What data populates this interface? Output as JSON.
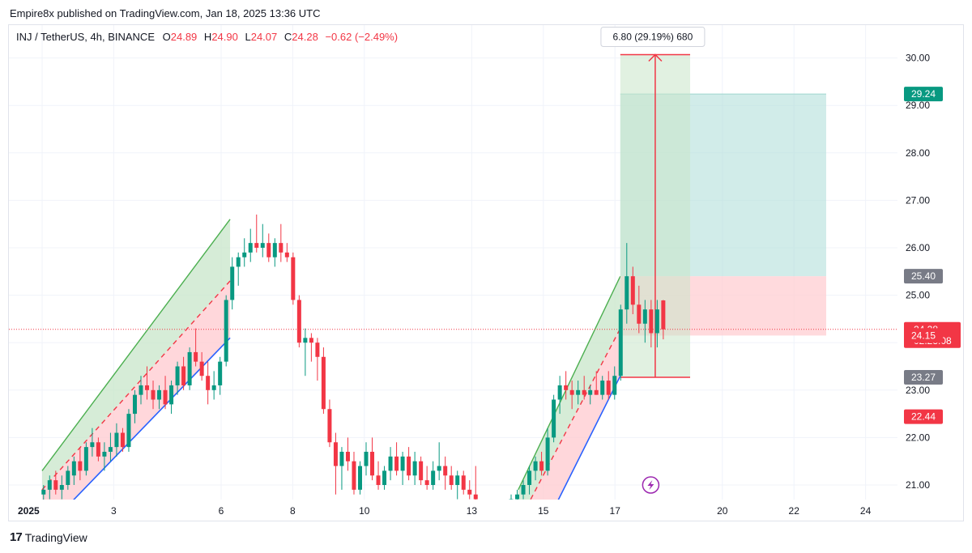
{
  "header": {
    "published": "Empire8x published on TradingView.com, Jan 18, 2025 13:36 UTC"
  },
  "legend": {
    "symbol": "INJ / TetherUS, 4h, BINANCE",
    "o_label": "O",
    "o_value": "24.89",
    "h_label": "H",
    "h_value": "24.90",
    "l_label": "L",
    "l_value": "24.07",
    "c_label": "C",
    "c_value": "24.28",
    "change": "−0.62 (−2.49%)"
  },
  "footer": {
    "logo_mark": "17",
    "logo_text": "TradingView"
  },
  "colors": {
    "up": "#089981",
    "down": "#f23645",
    "grid": "#f0f3fa",
    "axis_text": "#131722",
    "channel_upper": "#4caf50",
    "channel_lower": "#2962ff",
    "channel_mid": "#f23645",
    "channel_fill_green": "#c8e6c9",
    "channel_fill_red": "#ffcdd2",
    "target_fill": "#b2dfdb",
    "stop_fill": "#ffcdd2",
    "measure_fill": "#c8e6c9",
    "measure_line": "#f23645"
  },
  "chart_data": {
    "type": "candlestick",
    "symbol": "INJ / TetherUS",
    "interval": "4h",
    "exchange": "BINANCE",
    "ylim": [
      20.6,
      30.6
    ],
    "y_ticks": [
      21.0,
      22.0,
      23.0,
      24.0,
      25.0,
      26.0,
      27.0,
      28.0,
      29.0,
      30.0
    ],
    "y_tick_labels": [
      "21.00",
      "22.00",
      "23.00",
      "",
      "25.00",
      "26.00",
      "27.00",
      "28.00",
      "29.00",
      "30.00"
    ],
    "x_tick_labels": [
      {
        "label": "2025",
        "day": 1,
        "bold": true
      },
      {
        "label": "3",
        "day": 3
      },
      {
        "label": "6",
        "day": 6
      },
      {
        "label": "8",
        "day": 8
      },
      {
        "label": "10",
        "day": 10
      },
      {
        "label": "13",
        "day": 13
      },
      {
        "label": "15",
        "day": 15
      },
      {
        "label": "17",
        "day": 17
      },
      {
        "label": "20",
        "day": 20
      },
      {
        "label": "22",
        "day": 22
      },
      {
        "label": "24",
        "day": 24
      }
    ],
    "candles": [
      {
        "day": 1.04,
        "o": 20.8,
        "h": 21.0,
        "l": 20.6,
        "c": 20.9
      },
      {
        "day": 1.21,
        "o": 20.9,
        "h": 21.2,
        "l": 20.7,
        "c": 21.1
      },
      {
        "day": 1.38,
        "o": 21.1,
        "h": 21.3,
        "l": 20.8,
        "c": 20.9
      },
      {
        "day": 1.55,
        "o": 20.9,
        "h": 21.2,
        "l": 20.7,
        "c": 21.0
      },
      {
        "day": 1.72,
        "o": 21.0,
        "h": 21.4,
        "l": 20.9,
        "c": 21.3
      },
      {
        "day": 1.89,
        "o": 21.2,
        "h": 21.6,
        "l": 21.0,
        "c": 21.5
      },
      {
        "day": 2.06,
        "o": 21.5,
        "h": 21.8,
        "l": 21.1,
        "c": 21.3
      },
      {
        "day": 2.23,
        "o": 21.3,
        "h": 21.9,
        "l": 21.2,
        "c": 21.8
      },
      {
        "day": 2.4,
        "o": 21.8,
        "h": 22.2,
        "l": 21.6,
        "c": 21.9
      },
      {
        "day": 2.57,
        "o": 21.9,
        "h": 22.0,
        "l": 21.5,
        "c": 21.6
      },
      {
        "day": 2.74,
        "o": 21.6,
        "h": 21.9,
        "l": 21.3,
        "c": 21.7
      },
      {
        "day": 2.91,
        "o": 21.7,
        "h": 22.1,
        "l": 21.5,
        "c": 21.8
      },
      {
        "day": 3.08,
        "o": 21.8,
        "h": 22.3,
        "l": 21.6,
        "c": 22.1
      },
      {
        "day": 3.25,
        "o": 22.1,
        "h": 22.2,
        "l": 21.7,
        "c": 21.8
      },
      {
        "day": 3.42,
        "o": 21.8,
        "h": 22.6,
        "l": 21.7,
        "c": 22.5
      },
      {
        "day": 3.59,
        "o": 22.5,
        "h": 23.0,
        "l": 22.3,
        "c": 22.9
      },
      {
        "day": 3.76,
        "o": 22.9,
        "h": 23.3,
        "l": 22.7,
        "c": 23.1
      },
      {
        "day": 3.93,
        "o": 23.1,
        "h": 23.5,
        "l": 22.8,
        "c": 23.0
      },
      {
        "day": 4.1,
        "o": 23.0,
        "h": 23.2,
        "l": 22.6,
        "c": 22.8
      },
      {
        "day": 4.27,
        "o": 22.8,
        "h": 23.1,
        "l": 22.6,
        "c": 23.0
      },
      {
        "day": 4.44,
        "o": 23.0,
        "h": 23.3,
        "l": 22.6,
        "c": 22.7
      },
      {
        "day": 4.61,
        "o": 22.7,
        "h": 23.2,
        "l": 22.5,
        "c": 23.1
      },
      {
        "day": 4.78,
        "o": 23.1,
        "h": 23.6,
        "l": 22.9,
        "c": 23.5
      },
      {
        "day": 4.95,
        "o": 23.5,
        "h": 23.7,
        "l": 23.0,
        "c": 23.1
      },
      {
        "day": 5.12,
        "o": 23.1,
        "h": 23.9,
        "l": 23.0,
        "c": 23.8
      },
      {
        "day": 5.29,
        "o": 23.8,
        "h": 24.3,
        "l": 23.5,
        "c": 23.6
      },
      {
        "day": 5.46,
        "o": 23.6,
        "h": 23.8,
        "l": 23.2,
        "c": 23.3
      },
      {
        "day": 5.63,
        "o": 23.3,
        "h": 23.6,
        "l": 22.7,
        "c": 23.0
      },
      {
        "day": 5.8,
        "o": 23.0,
        "h": 23.4,
        "l": 22.8,
        "c": 23.1
      },
      {
        "day": 5.97,
        "o": 23.1,
        "h": 23.7,
        "l": 22.9,
        "c": 23.6
      },
      {
        "day": 6.14,
        "o": 23.6,
        "h": 25.0,
        "l": 23.5,
        "c": 24.9
      },
      {
        "day": 6.31,
        "o": 24.9,
        "h": 25.8,
        "l": 24.7,
        "c": 25.6
      },
      {
        "day": 6.48,
        "o": 25.6,
        "h": 25.9,
        "l": 25.2,
        "c": 25.8
      },
      {
        "day": 6.65,
        "o": 25.8,
        "h": 26.2,
        "l": 25.6,
        "c": 25.9
      },
      {
        "day": 6.82,
        "o": 25.9,
        "h": 26.4,
        "l": 25.7,
        "c": 26.1
      },
      {
        "day": 6.99,
        "o": 26.1,
        "h": 26.7,
        "l": 25.9,
        "c": 26.0
      },
      {
        "day": 7.16,
        "o": 26.0,
        "h": 26.5,
        "l": 25.8,
        "c": 26.1
      },
      {
        "day": 7.33,
        "o": 26.1,
        "h": 26.3,
        "l": 25.7,
        "c": 25.8
      },
      {
        "day": 7.5,
        "o": 25.8,
        "h": 26.2,
        "l": 25.6,
        "c": 26.1
      },
      {
        "day": 7.67,
        "o": 26.1,
        "h": 26.5,
        "l": 25.7,
        "c": 25.9
      },
      {
        "day": 7.84,
        "o": 25.9,
        "h": 26.1,
        "l": 25.7,
        "c": 25.8
      },
      {
        "day": 8.01,
        "o": 25.8,
        "h": 25.9,
        "l": 24.8,
        "c": 24.9
      },
      {
        "day": 8.18,
        "o": 24.9,
        "h": 25.0,
        "l": 23.9,
        "c": 24.0
      },
      {
        "day": 8.35,
        "o": 24.0,
        "h": 24.3,
        "l": 23.3,
        "c": 24.1
      },
      {
        "day": 8.52,
        "o": 24.1,
        "h": 24.2,
        "l": 23.6,
        "c": 24.0
      },
      {
        "day": 8.69,
        "o": 24.0,
        "h": 24.1,
        "l": 23.2,
        "c": 23.7
      },
      {
        "day": 8.86,
        "o": 23.7,
        "h": 23.9,
        "l": 22.5,
        "c": 22.6
      },
      {
        "day": 9.03,
        "o": 22.6,
        "h": 22.8,
        "l": 21.8,
        "c": 21.9
      },
      {
        "day": 9.2,
        "o": 21.9,
        "h": 22.1,
        "l": 20.8,
        "c": 21.4
      },
      {
        "day": 9.37,
        "o": 21.4,
        "h": 21.8,
        "l": 20.9,
        "c": 21.7
      },
      {
        "day": 9.54,
        "o": 21.7,
        "h": 22.0,
        "l": 21.3,
        "c": 21.5
      },
      {
        "day": 9.71,
        "o": 21.5,
        "h": 21.7,
        "l": 20.8,
        "c": 20.9
      },
      {
        "day": 9.88,
        "o": 20.9,
        "h": 21.5,
        "l": 20.8,
        "c": 21.4
      },
      {
        "day": 10.05,
        "o": 21.4,
        "h": 21.9,
        "l": 21.2,
        "c": 21.7
      },
      {
        "day": 10.22,
        "o": 21.7,
        "h": 22.0,
        "l": 21.1,
        "c": 21.2
      },
      {
        "day": 10.39,
        "o": 21.2,
        "h": 21.5,
        "l": 20.9,
        "c": 21.0
      },
      {
        "day": 10.56,
        "o": 21.0,
        "h": 21.4,
        "l": 20.9,
        "c": 21.3
      },
      {
        "day": 10.73,
        "o": 21.3,
        "h": 21.8,
        "l": 21.1,
        "c": 21.6
      },
      {
        "day": 10.9,
        "o": 21.6,
        "h": 21.9,
        "l": 21.2,
        "c": 21.3
      },
      {
        "day": 11.07,
        "o": 21.3,
        "h": 21.7,
        "l": 21.0,
        "c": 21.6
      },
      {
        "day": 11.24,
        "o": 21.6,
        "h": 21.8,
        "l": 21.1,
        "c": 21.2
      },
      {
        "day": 11.41,
        "o": 21.2,
        "h": 21.7,
        "l": 21.0,
        "c": 21.5
      },
      {
        "day": 11.58,
        "o": 21.5,
        "h": 21.6,
        "l": 21.0,
        "c": 21.1
      },
      {
        "day": 11.75,
        "o": 21.1,
        "h": 21.4,
        "l": 20.9,
        "c": 21.0
      },
      {
        "day": 11.92,
        "o": 21.0,
        "h": 21.5,
        "l": 20.9,
        "c": 21.3
      },
      {
        "day": 12.09,
        "o": 21.3,
        "h": 21.9,
        "l": 21.1,
        "c": 21.4
      },
      {
        "day": 12.26,
        "o": 21.4,
        "h": 21.6,
        "l": 20.9,
        "c": 21.2
      },
      {
        "day": 12.43,
        "o": 21.2,
        "h": 21.4,
        "l": 20.9,
        "c": 21.0
      },
      {
        "day": 12.6,
        "o": 21.0,
        "h": 21.3,
        "l": 20.7,
        "c": 21.2
      },
      {
        "day": 12.77,
        "o": 21.2,
        "h": 21.3,
        "l": 20.8,
        "c": 20.9
      },
      {
        "day": 12.94,
        "o": 20.9,
        "h": 21.1,
        "l": 20.7,
        "c": 20.8
      },
      {
        "day": 13.11,
        "o": 20.8,
        "h": 21.4,
        "l": 20.6,
        "c": 20.7
      },
      {
        "day": 14.1,
        "o": 20.6,
        "h": 20.8,
        "l": 20.6,
        "c": 20.7
      },
      {
        "day": 14.27,
        "o": 20.7,
        "h": 20.9,
        "l": 20.6,
        "c": 20.8
      },
      {
        "day": 14.44,
        "o": 20.8,
        "h": 21.1,
        "l": 20.7,
        "c": 21.0
      },
      {
        "day": 14.61,
        "o": 21.0,
        "h": 21.4,
        "l": 20.8,
        "c": 21.3
      },
      {
        "day": 14.78,
        "o": 21.3,
        "h": 21.6,
        "l": 21.1,
        "c": 21.5
      },
      {
        "day": 14.95,
        "o": 21.5,
        "h": 21.7,
        "l": 21.2,
        "c": 21.3
      },
      {
        "day": 15.12,
        "o": 21.3,
        "h": 22.2,
        "l": 21.2,
        "c": 22.0
      },
      {
        "day": 15.29,
        "o": 22.0,
        "h": 22.9,
        "l": 21.9,
        "c": 22.8
      },
      {
        "day": 15.46,
        "o": 22.8,
        "h": 23.3,
        "l": 22.5,
        "c": 23.1
      },
      {
        "day": 15.63,
        "o": 23.1,
        "h": 23.4,
        "l": 22.8,
        "c": 23.0
      },
      {
        "day": 15.8,
        "o": 23.0,
        "h": 23.2,
        "l": 22.6,
        "c": 22.9
      },
      {
        "day": 15.97,
        "o": 22.9,
        "h": 23.2,
        "l": 22.7,
        "c": 23.0
      },
      {
        "day": 16.14,
        "o": 23.0,
        "h": 23.3,
        "l": 22.8,
        "c": 22.9
      },
      {
        "day": 16.31,
        "o": 22.9,
        "h": 23.1,
        "l": 22.7,
        "c": 23.0
      },
      {
        "day": 16.48,
        "o": 23.0,
        "h": 23.4,
        "l": 22.9,
        "c": 22.9
      },
      {
        "day": 16.65,
        "o": 22.9,
        "h": 23.3,
        "l": 22.8,
        "c": 23.2
      },
      {
        "day": 16.82,
        "o": 23.2,
        "h": 23.4,
        "l": 22.8,
        "c": 22.9
      },
      {
        "day": 16.99,
        "o": 22.9,
        "h": 23.5,
        "l": 22.8,
        "c": 23.3
      },
      {
        "day": 17.16,
        "o": 23.3,
        "h": 24.8,
        "l": 23.2,
        "c": 24.7
      },
      {
        "day": 17.33,
        "o": 24.7,
        "h": 26.1,
        "l": 24.4,
        "c": 25.4
      },
      {
        "day": 17.5,
        "o": 25.4,
        "h": 25.6,
        "l": 24.6,
        "c": 24.8
      },
      {
        "day": 17.67,
        "o": 24.8,
        "h": 25.2,
        "l": 24.2,
        "c": 24.4
      },
      {
        "day": 17.84,
        "o": 24.4,
        "h": 24.9,
        "l": 24.0,
        "c": 24.7
      },
      {
        "day": 18.01,
        "o": 24.7,
        "h": 24.9,
        "l": 23.9,
        "c": 24.2
      },
      {
        "day": 18.18,
        "o": 24.2,
        "h": 24.9,
        "l": 23.9,
        "c": 24.7
      },
      {
        "day": 18.35,
        "o": 24.89,
        "h": 24.9,
        "l": 24.07,
        "c": 24.28
      }
    ],
    "channels": [
      {
        "name": "channel-left",
        "start_day": 1.0,
        "end_day": 6.25,
        "upper": [
          21.3,
          26.6
        ],
        "mid": [
          20.9,
          25.3
        ],
        "lower": [
          20.0,
          24.1
        ]
      },
      {
        "name": "channel-right",
        "start_day": 14.3,
        "end_day": 17.15,
        "upper": [
          20.9,
          25.4
        ],
        "mid": [
          20.2,
          24.3
        ],
        "lower": [
          19.0,
          23.3
        ]
      }
    ],
    "position": {
      "start_day": 17.15,
      "end_day": 22.9,
      "entry": 24.15,
      "target": 29.24,
      "stop": 25.4
    },
    "measure": {
      "start_day": 17.15,
      "end_day": 19.1,
      "from": 23.27,
      "to": 30.07,
      "label": "6.80 (29.19%) 680"
    },
    "last_price": 24.28,
    "last_price_label": "24.28",
    "countdown_label": "02:23:08",
    "price_labels": [
      {
        "value": 29.24,
        "text": "29.24",
        "color": "#089981"
      },
      {
        "value": 25.4,
        "text": "25.40",
        "color": "#787b86"
      },
      {
        "value": 24.15,
        "text": "24.15",
        "color": "#f23645"
      },
      {
        "value": 23.27,
        "text": "23.27",
        "color": "#787b86"
      },
      {
        "value": 22.44,
        "text": "22.44",
        "color": "#f23645"
      }
    ],
    "marker_icon": "lightning-icon",
    "marker_day": 18.0,
    "marker_price": 21.0
  }
}
